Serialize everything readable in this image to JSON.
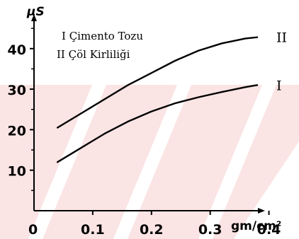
{
  "chart_data": {
    "type": "line",
    "ylabel": "µS",
    "xlabel": "gm/cm²",
    "origin_label": "0",
    "xlim": [
      0,
      0.45
    ],
    "ylim": [
      0,
      52
    ],
    "x_ticks": [
      0.1,
      0.2,
      0.3,
      0.4
    ],
    "x_tick_labels": [
      "0.1",
      "0.2",
      "0.3",
      "0.4"
    ],
    "y_ticks": [
      10,
      20,
      30,
      40
    ],
    "y_tick_labels": [
      "10",
      "20",
      "30",
      "40"
    ],
    "legend": [
      "I Çimento Tozu",
      "II Çöl Kirliliği"
    ],
    "series": [
      {
        "name": "I",
        "x": [
          0.04,
          0.08,
          0.12,
          0.16,
          0.2,
          0.24,
          0.28,
          0.32,
          0.36,
          0.38
        ],
        "values": [
          12,
          15.5,
          19,
          22,
          24.5,
          26.5,
          28,
          29.3,
          30.5,
          31
        ]
      },
      {
        "name": "II",
        "x": [
          0.04,
          0.08,
          0.12,
          0.16,
          0.2,
          0.24,
          0.28,
          0.32,
          0.36,
          0.38
        ],
        "values": [
          20.5,
          24,
          27.5,
          31,
          34,
          37,
          39.5,
          41.3,
          42.5,
          42.8
        ]
      }
    ]
  }
}
